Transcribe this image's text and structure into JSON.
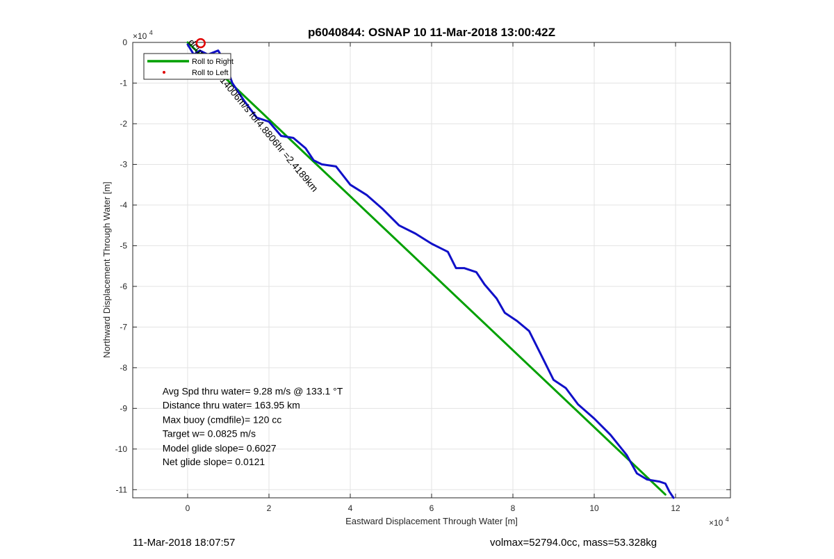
{
  "chart_data": {
    "type": "line",
    "title": "p6040844: OSNAP 10 11-Mar-2018 13:00:42Z",
    "xlabel": "Eastward Displacement Through Water [m]",
    "ylabel": "Northward Displacement Through Water [m]",
    "x_exponent_label": "×10",
    "x_exponent_power": "4",
    "y_exponent_label": "×10",
    "y_exponent_power": "4",
    "xlim": [
      -1.35,
      13.35
    ],
    "ylim": [
      -11.2,
      0
    ],
    "xticks": [
      0,
      2,
      4,
      6,
      8,
      10,
      12
    ],
    "yticks": [
      0,
      -1,
      -2,
      -3,
      -4,
      -5,
      -6,
      -7,
      -8,
      -9,
      -10,
      -11
    ],
    "xtick_labels": [
      "0",
      "2",
      "4",
      "6",
      "8",
      "10",
      "12"
    ],
    "ytick_labels": [
      "0",
      "-1",
      "-2",
      "-3",
      "-4",
      "-5",
      "-6",
      "-7",
      "-8",
      "-9",
      "-10",
      "-11"
    ],
    "grid": true,
    "legend_position": "top-left",
    "legend": [
      {
        "name": "Roll to Right",
        "color": "#00a000",
        "style": "line"
      },
      {
        "name": "Roll to Left",
        "color": "#e00000",
        "style": "dot"
      }
    ],
    "series": [
      {
        "color": "#00a000",
        "x": [
          0,
          11.75
        ],
        "y": [
          0,
          -11.12
        ]
      },
      {
        "color": "#1010c8",
        "x": [
          0,
          0.15,
          0.3,
          0.5,
          0.75,
          0.9,
          1.1,
          1.4,
          1.7,
          2.0,
          2.3,
          2.6,
          2.9,
          3.1,
          3.3,
          3.65,
          4.0,
          4.4,
          4.8,
          5.2,
          5.6,
          6.0,
          6.4,
          6.6,
          6.8,
          7.1,
          7.3,
          7.6,
          7.8,
          8.1,
          8.4,
          8.7,
          9.0,
          9.3,
          9.6,
          10.0,
          10.4,
          10.8,
          11.05,
          11.3,
          11.6,
          11.75,
          11.85,
          11.95
        ],
        "y": [
          -0.05,
          -0.3,
          -0.2,
          -0.3,
          -0.2,
          -0.45,
          -1.0,
          -1.45,
          -1.85,
          -1.95,
          -2.3,
          -2.35,
          -2.6,
          -2.9,
          -3.0,
          -3.05,
          -3.5,
          -3.75,
          -4.1,
          -4.5,
          -4.7,
          -4.95,
          -5.15,
          -5.55,
          -5.55,
          -5.65,
          -5.95,
          -6.3,
          -6.65,
          -6.85,
          -7.1,
          -7.7,
          -8.3,
          -8.5,
          -8.9,
          -9.25,
          -9.65,
          -10.15,
          -10.6,
          -10.75,
          -10.8,
          -10.85,
          -11.05,
          -11.2
        ]
      }
    ],
    "marker": {
      "x": 0.32,
      "y": -0.02,
      "color": "#e00000",
      "style": "circle"
    },
    "annotations": [
      {
        "text": "dcurrent=0.14006m/s for4.8806hr =2.4189km",
        "x": 0,
        "y": 0,
        "rotation_deg": 50
      },
      {
        "text": "Avg Spd thru water=  9.28 m/s @ 133.1 °T",
        "x": -0.62,
        "y": -8.66
      },
      {
        "text": "Distance thru water= 163.95 km",
        "x": -0.62,
        "y": -9.0
      },
      {
        "text": "Max buoy (cmdfile)= 120 cc",
        "x": -0.62,
        "y": -9.36
      },
      {
        "text": "Target w= 0.0825 m/s",
        "x": -0.62,
        "y": -9.7
      },
      {
        "text": "Model glide slope= 0.6027",
        "x": -0.62,
        "y": -10.06
      },
      {
        "text": "Net glide slope= 0.0121",
        "x": -0.62,
        "y": -10.4
      }
    ]
  },
  "footer": {
    "left": "11-Mar-2018 18:07:57",
    "right": "volmax=52794.0cc, mass=53.328kg"
  }
}
